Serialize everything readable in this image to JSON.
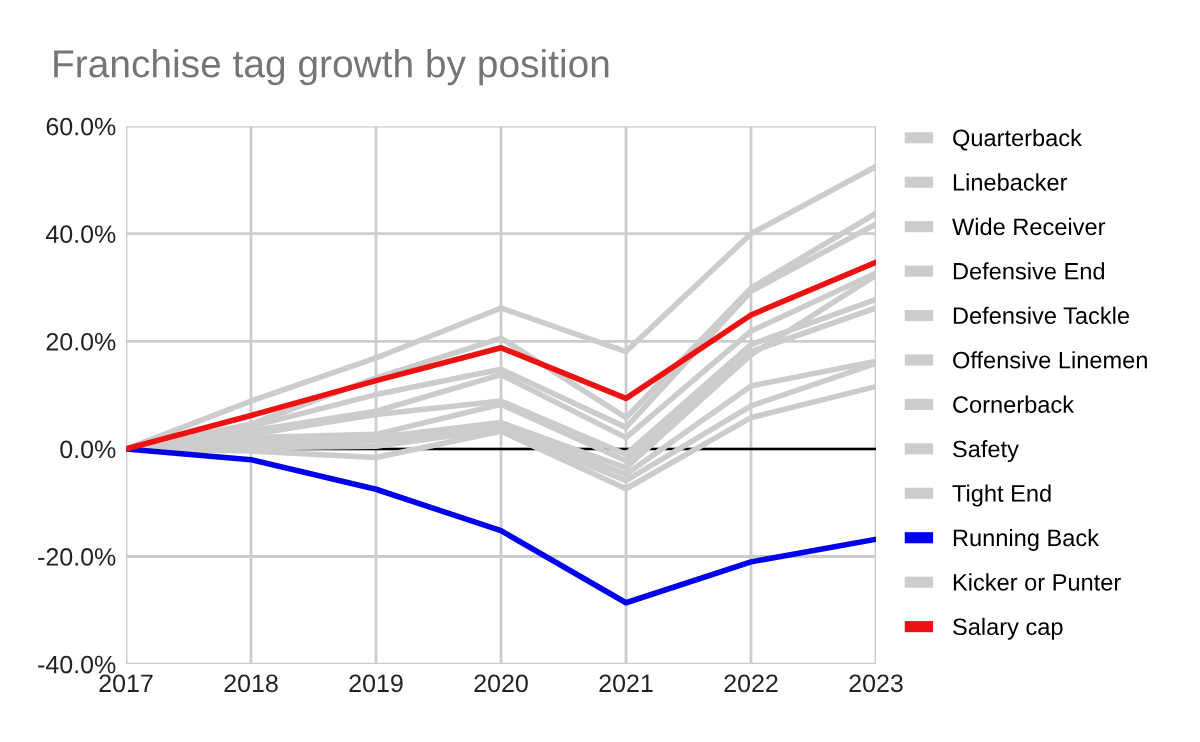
{
  "chart_data": {
    "type": "line",
    "title": "Franchise tag growth by position",
    "x": [
      2017,
      2018,
      2019,
      2020,
      2021,
      2022,
      2023
    ],
    "xlim": [
      2017,
      2023
    ],
    "xticks": [
      2017,
      2018,
      2019,
      2020,
      2021,
      2022,
      2023
    ],
    "ylim": [
      -40,
      60
    ],
    "yticks": [
      {
        "value": -40,
        "label": "-40.0%"
      },
      {
        "value": -20,
        "label": "-20.0%"
      },
      {
        "value": 0,
        "label": "0.0%"
      },
      {
        "value": 20,
        "label": "20.0%"
      },
      {
        "value": 40,
        "label": "40.0%"
      },
      {
        "value": 60,
        "label": "60.0%"
      }
    ],
    "grid": true,
    "legend": "right",
    "marker": "none",
    "line_style": "solid",
    "ref_lines": [
      {
        "axis": "y",
        "value": 0,
        "color": "#000000"
      }
    ],
    "series": [
      {
        "name": "Quarterback",
        "color": "#cccccc",
        "values": [
          0,
          8.9,
          16.9,
          26.2,
          18.1,
          40,
          52.5
        ]
      },
      {
        "name": "Linebacker",
        "color": "#cccccc",
        "values": [
          0,
          4.6,
          13.2,
          20.6,
          5.8,
          29.9,
          43.8
        ]
      },
      {
        "name": "Wide Receiver",
        "color": "#cccccc",
        "values": [
          0,
          4.2,
          10.1,
          14.8,
          4.0,
          29.3,
          41.8
        ]
      },
      {
        "name": "Defensive End",
        "color": "#cccccc",
        "values": [
          0,
          3.3,
          7.0,
          13.8,
          2.1,
          21.9,
          32.7
        ]
      },
      {
        "name": "Defensive Tackle",
        "color": "#cccccc",
        "values": [
          0,
          2.7,
          6.4,
          8.9,
          -1.0,
          19.4,
          27.8
        ]
      },
      {
        "name": "Offensive Linemen",
        "color": "#cccccc",
        "values": [
          0,
          2.1,
          2.7,
          8.3,
          -2.2,
          18.1,
          26.2
        ]
      },
      {
        "name": "Cornerback",
        "color": "#cccccc",
        "values": [
          0,
          1.5,
          2.1,
          4.9,
          -3.5,
          17.5,
          32.3
        ]
      },
      {
        "name": "Safety",
        "color": "#cccccc",
        "values": [
          0,
          0.9,
          1.5,
          4.2,
          -4.7,
          11.7,
          16.3
        ]
      },
      {
        "name": "Tight End",
        "color": "#cccccc",
        "values": [
          0,
          0.2,
          0.5,
          3.7,
          -5.9,
          8.0,
          15.9
        ]
      },
      {
        "name": "Running Back",
        "color": "#0000ee",
        "values": [
          0,
          -2.0,
          -7.5,
          -15.2,
          -28.6,
          -21.0,
          -16.8
        ]
      },
      {
        "name": "Kicker or Punter",
        "color": "#cccccc",
        "values": [
          0,
          -0.4,
          -1.6,
          3.3,
          -7.4,
          5.8,
          11.6
        ]
      },
      {
        "name": "Salary cap",
        "color": "#ee1111",
        "values": [
          0,
          6.2,
          12.7,
          18.8,
          9.4,
          24.9,
          34.7
        ]
      }
    ]
  }
}
